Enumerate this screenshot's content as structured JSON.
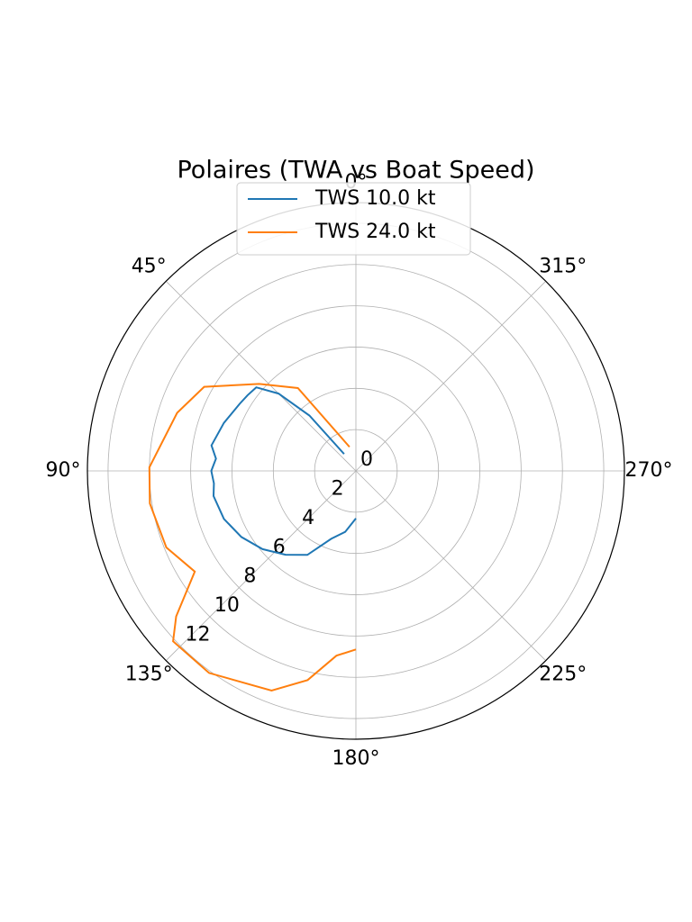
{
  "chart_data": {
    "type": "polar",
    "title": "Polaires (TWA vs Boat Speed)",
    "direction": "counterclockwise",
    "zero_location": "N",
    "series": [
      {
        "name": "TWS 10.0 kt",
        "color": "#1f77b4",
        "x": [
          35,
          40,
          45,
          50,
          55,
          60,
          70,
          80,
          85,
          90,
          95,
          100,
          110,
          120,
          130,
          140,
          150,
          160,
          170,
          180
        ],
        "values": [
          1.0,
          3.5,
          5.3,
          6.3,
          6.4,
          6.5,
          6.8,
          7.1,
          6.8,
          7.0,
          6.9,
          7.0,
          6.8,
          6.4,
          5.9,
          5.3,
          4.7,
          3.5,
          3.0,
          2.3
        ]
      },
      {
        "name": "TWS 24.0 kt",
        "color": "#ff7f0e",
        "x": [
          15,
          35,
          48,
          61,
          72,
          89,
          99,
          112,
          122,
          129,
          133,
          144,
          159,
          167,
          174,
          180
        ],
        "values": [
          1.2,
          4.9,
          6.3,
          8.4,
          9.1,
          10.0,
          10.1,
          9.9,
          9.2,
          11.2,
          12.1,
          12.1,
          11.4,
          10.4,
          9.0,
          8.65
        ]
      }
    ],
    "xticks": [
      {
        "value": 0,
        "label": "0°"
      },
      {
        "value": 45,
        "label": "45°"
      },
      {
        "value": 90,
        "label": "90°"
      },
      {
        "value": 135,
        "label": "135°"
      },
      {
        "value": 180,
        "label": "180°"
      },
      {
        "value": 225,
        "label": "225°"
      },
      {
        "value": 270,
        "label": "270°"
      },
      {
        "value": 315,
        "label": "315°"
      }
    ],
    "ylim": [
      0,
      13
    ],
    "yticks": [
      0,
      2,
      4,
      6,
      8,
      10,
      12
    ],
    "grid": true,
    "legend": "upper center"
  }
}
